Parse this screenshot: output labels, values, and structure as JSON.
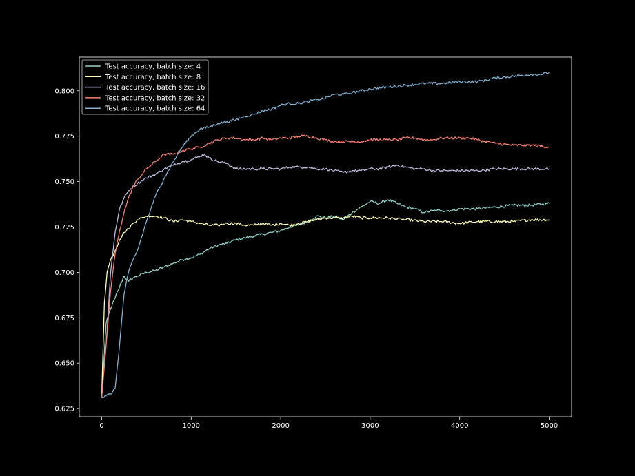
{
  "chart_data": {
    "type": "line",
    "title": "",
    "xlabel": "",
    "ylabel": "",
    "xlim": [
      -250,
      5250
    ],
    "ylim": [
      0.6205,
      0.8185
    ],
    "x_ticks": [
      0,
      1000,
      2000,
      3000,
      4000,
      5000
    ],
    "y_ticks": [
      0.625,
      0.65,
      0.675,
      0.7,
      0.725,
      0.75,
      0.775,
      0.8
    ],
    "x_tick_labels": [
      "0",
      "1000",
      "2000",
      "3000",
      "4000",
      "5000"
    ],
    "y_tick_labels": [
      "0.625",
      "0.650",
      "0.675",
      "0.700",
      "0.725",
      "0.750",
      "0.775",
      "0.800"
    ],
    "grid": false,
    "legend_position": "top-left",
    "background": "#000000",
    "axis_color": "#ffffff",
    "series": [
      {
        "name": "Test accuracy, batch size: 4",
        "color": "#8dd3c7",
        "x": [
          0,
          50,
          100,
          150,
          200,
          250,
          300,
          350,
          400,
          500,
          600,
          700,
          800,
          900,
          1000,
          1100,
          1200,
          1300,
          1400,
          1500,
          1600,
          1700,
          1800,
          1900,
          2000,
          2100,
          2200,
          2300,
          2400,
          2500,
          2600,
          2700,
          2800,
          2900,
          3000,
          3100,
          3200,
          3300,
          3400,
          3500,
          3600,
          3700,
          3800,
          3900,
          4000,
          4200,
          4400,
          4600,
          4800,
          5000
        ],
        "y": [
          0.632,
          0.672,
          0.68,
          0.686,
          0.692,
          0.698,
          0.695,
          0.697,
          0.698,
          0.7,
          0.701,
          0.703,
          0.705,
          0.707,
          0.708,
          0.71,
          0.713,
          0.715,
          0.716,
          0.718,
          0.719,
          0.72,
          0.721,
          0.722,
          0.723,
          0.725,
          0.726,
          0.728,
          0.731,
          0.73,
          0.731,
          0.729,
          0.733,
          0.736,
          0.739,
          0.738,
          0.74,
          0.738,
          0.736,
          0.735,
          0.733,
          0.734,
          0.734,
          0.734,
          0.735,
          0.735,
          0.736,
          0.737,
          0.737,
          0.738
        ]
      },
      {
        "name": "Test accuracy, batch size: 8",
        "color": "#ffffb3",
        "x": [
          0,
          30,
          60,
          100,
          150,
          200,
          250,
          300,
          350,
          400,
          450,
          500,
          550,
          600,
          700,
          800,
          900,
          1000,
          1100,
          1200,
          1300,
          1400,
          1500,
          1600,
          1700,
          1800,
          1900,
          2000,
          2100,
          2200,
          2300,
          2400,
          2500,
          2600,
          2700,
          2800,
          2900,
          3000,
          3200,
          3400,
          3600,
          3800,
          4000,
          4200,
          4400,
          4600,
          4800,
          5000
        ],
        "y": [
          0.631,
          0.683,
          0.7,
          0.707,
          0.712,
          0.718,
          0.722,
          0.724,
          0.727,
          0.729,
          0.73,
          0.731,
          0.731,
          0.731,
          0.73,
          0.728,
          0.729,
          0.728,
          0.727,
          0.726,
          0.726,
          0.727,
          0.727,
          0.726,
          0.726,
          0.727,
          0.726,
          0.727,
          0.726,
          0.727,
          0.728,
          0.729,
          0.73,
          0.73,
          0.73,
          0.731,
          0.73,
          0.73,
          0.73,
          0.729,
          0.728,
          0.728,
          0.727,
          0.728,
          0.728,
          0.728,
          0.729,
          0.729
        ]
      },
      {
        "name": "Test accuracy, batch size: 16",
        "color": "#bebada",
        "x": [
          0,
          50,
          100,
          150,
          200,
          250,
          300,
          400,
          500,
          600,
          700,
          800,
          900,
          1000,
          1100,
          1150,
          1200,
          1300,
          1400,
          1500,
          1600,
          1700,
          1800,
          1900,
          2000,
          2100,
          2200,
          2300,
          2400,
          2500,
          2600,
          2700,
          2800,
          2900,
          3000,
          3100,
          3200,
          3300,
          3400,
          3500,
          3600,
          3700,
          3800,
          3900,
          4000,
          4200,
          4400,
          4600,
          4800,
          5000
        ],
        "y": [
          0.631,
          0.66,
          0.7,
          0.722,
          0.735,
          0.741,
          0.745,
          0.749,
          0.752,
          0.754,
          0.757,
          0.759,
          0.761,
          0.762,
          0.764,
          0.765,
          0.763,
          0.761,
          0.76,
          0.757,
          0.757,
          0.757,
          0.757,
          0.757,
          0.757,
          0.758,
          0.758,
          0.758,
          0.757,
          0.757,
          0.756,
          0.755,
          0.756,
          0.756,
          0.757,
          0.757,
          0.758,
          0.759,
          0.758,
          0.757,
          0.757,
          0.756,
          0.756,
          0.756,
          0.756,
          0.756,
          0.757,
          0.757,
          0.757,
          0.757
        ]
      },
      {
        "name": "Test accuracy, batch size: 32",
        "color": "#fb8072",
        "x": [
          0,
          50,
          100,
          150,
          200,
          250,
          300,
          350,
          400,
          500,
          600,
          700,
          800,
          900,
          1000,
          1100,
          1200,
          1300,
          1400,
          1500,
          1600,
          1700,
          1800,
          1900,
          2000,
          2100,
          2200,
          2300,
          2400,
          2500,
          2600,
          2700,
          2800,
          2900,
          3000,
          3100,
          3200,
          3300,
          3400,
          3500,
          3600,
          3700,
          3800,
          3900,
          4000,
          4100,
          4200,
          4400,
          4600,
          4800,
          5000
        ],
        "y": [
          0.631,
          0.66,
          0.69,
          0.71,
          0.723,
          0.733,
          0.741,
          0.747,
          0.751,
          0.757,
          0.761,
          0.765,
          0.765,
          0.767,
          0.768,
          0.769,
          0.771,
          0.773,
          0.774,
          0.774,
          0.773,
          0.773,
          0.774,
          0.773,
          0.774,
          0.774,
          0.775,
          0.775,
          0.774,
          0.773,
          0.772,
          0.772,
          0.772,
          0.772,
          0.773,
          0.773,
          0.773,
          0.773,
          0.774,
          0.774,
          0.773,
          0.773,
          0.774,
          0.774,
          0.774,
          0.774,
          0.773,
          0.771,
          0.77,
          0.77,
          0.769
        ]
      },
      {
        "name": "Test accuracy, batch size: 64",
        "color": "#80b1d3",
        "x": [
          0,
          50,
          100,
          150,
          200,
          250,
          300,
          350,
          400,
          450,
          500,
          550,
          600,
          700,
          800,
          900,
          1000,
          1100,
          1200,
          1300,
          1400,
          1500,
          1600,
          1700,
          1800,
          1900,
          2000,
          2100,
          2200,
          2300,
          2400,
          2500,
          2600,
          2700,
          2800,
          2900,
          3000,
          3200,
          3400,
          3600,
          3800,
          4000,
          4200,
          4400,
          4600,
          4800,
          4900,
          5000
        ],
        "y": [
          0.631,
          0.632,
          0.633,
          0.636,
          0.66,
          0.688,
          0.7,
          0.707,
          0.712,
          0.72,
          0.728,
          0.735,
          0.742,
          0.752,
          0.761,
          0.769,
          0.775,
          0.779,
          0.78,
          0.782,
          0.783,
          0.784,
          0.786,
          0.787,
          0.789,
          0.79,
          0.792,
          0.793,
          0.793,
          0.794,
          0.795,
          0.796,
          0.798,
          0.798,
          0.799,
          0.8,
          0.801,
          0.802,
          0.803,
          0.804,
          0.804,
          0.805,
          0.805,
          0.807,
          0.808,
          0.809,
          0.809,
          0.81
        ]
      }
    ]
  }
}
